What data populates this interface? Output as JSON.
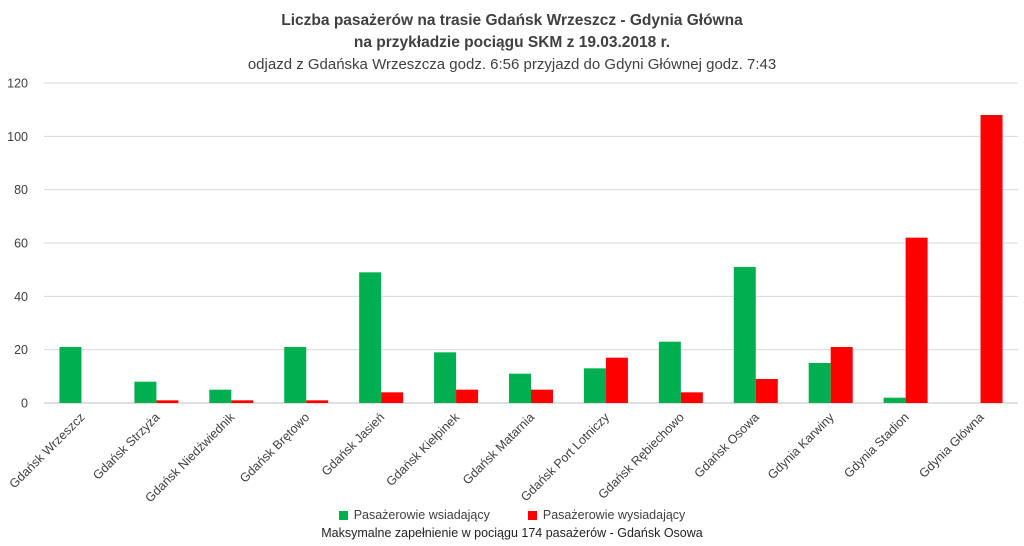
{
  "chart_data": {
    "type": "bar",
    "title": "Liczba pasażerów na trasie Gdańsk Wrzeszcz - Gdynia Główna",
    "title_line2": "na przykładzie pociągu SKM z 19.03.2018 r.",
    "subtitle": "odjazd z Gdańska Wrzeszcza godz. 6:56 przyjazd do Gdyni Głównej godz. 7:43",
    "xlabel": "",
    "ylabel": "",
    "ylim": [
      0,
      120
    ],
    "yticks": [
      "0",
      "20",
      "40",
      "60",
      "80",
      "100",
      "120"
    ],
    "grid": true,
    "legend_position": "bottom",
    "categories": [
      "Gdańsk Wrzeszcz",
      "Gdańsk Strzyża",
      "Gdańsk Niedźwiednik",
      "Gdańsk Brętowo",
      "Gdańsk Jasień",
      "Gdańsk Kiełpinek",
      "Gdańsk Matarnia",
      "Gdańsk Port Lotniczy",
      "Gdańsk Rębiechowo",
      "Gdańsk Osowa",
      "Gdynia Karwiny",
      "Gdynia Stadion",
      "Gdynia Główna"
    ],
    "series": [
      {
        "name": "Pasażerowie wsiadający",
        "color": "#00b050",
        "values": [
          21,
          8,
          5,
          21,
          49,
          19,
          11,
          13,
          23,
          51,
          15,
          2,
          0
        ]
      },
      {
        "name": "Pasażerowie wysiadający",
        "color": "#ff0000",
        "values": [
          0,
          1,
          1,
          1,
          4,
          5,
          5,
          17,
          4,
          9,
          21,
          62,
          108
        ]
      }
    ],
    "footnote": "Maksymalne zapełnienie w pociągu 174 pasażerów - Gdańsk Osowa"
  }
}
